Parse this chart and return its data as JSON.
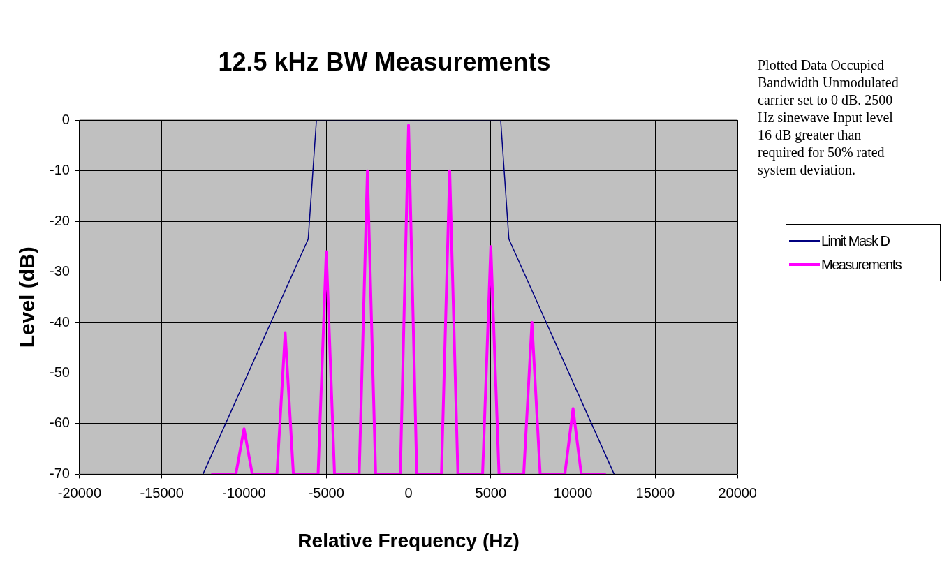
{
  "chart_data": {
    "type": "line",
    "title": "12.5 kHz BW Measurements",
    "xlabel": "Relative Frequency (Hz)",
    "ylabel": "Level (dB)",
    "xlim": [
      -20000,
      20000
    ],
    "xticks": [
      -20000,
      -15000,
      -10000,
      -5000,
      0,
      5000,
      10000,
      15000,
      20000
    ],
    "ylim": [
      -70,
      0
    ],
    "yticks": [
      -70,
      -60,
      -50,
      -40,
      -30,
      -20,
      -10,
      0
    ],
    "grid": true,
    "legend": "right",
    "marker": "none",
    "line_style": "solid",
    "annotations": [
      "Plotted Data Occupied Bandwidth Unmodulated carrier set to 0 dB.  2500 Hz sinewave Input level 16 dB greater than required for 50% rated system deviation."
    ],
    "series": [
      {
        "name": "Limit Mask D",
        "color": "#000080",
        "x": [
          -12500,
          -6100,
          -5600,
          5600,
          6100,
          12500
        ],
        "values": [
          -70,
          -23.5,
          0,
          0,
          -23.5,
          -70
        ]
      },
      {
        "name": "Measurements",
        "color": "#ff00ff",
        "x": [
          -12000,
          -10500,
          -10000,
          -9500,
          -8000,
          -7500,
          -7000,
          -5500,
          -5000,
          -4500,
          -3000,
          -2500,
          -2000,
          -500,
          0,
          500,
          2000,
          2500,
          3000,
          4500,
          5000,
          5500,
          7000,
          7500,
          8000,
          9500,
          10000,
          10500,
          12000
        ],
        "values": [
          -70,
          -70,
          -61,
          -70,
          -70,
          -42,
          -70,
          -70,
          -26,
          -70,
          -70,
          -10,
          -70,
          -70,
          -1,
          -70,
          -70,
          -10,
          -70,
          -70,
          -25,
          -70,
          -70,
          -40,
          -70,
          -70,
          -57,
          -70,
          -70
        ]
      }
    ]
  }
}
